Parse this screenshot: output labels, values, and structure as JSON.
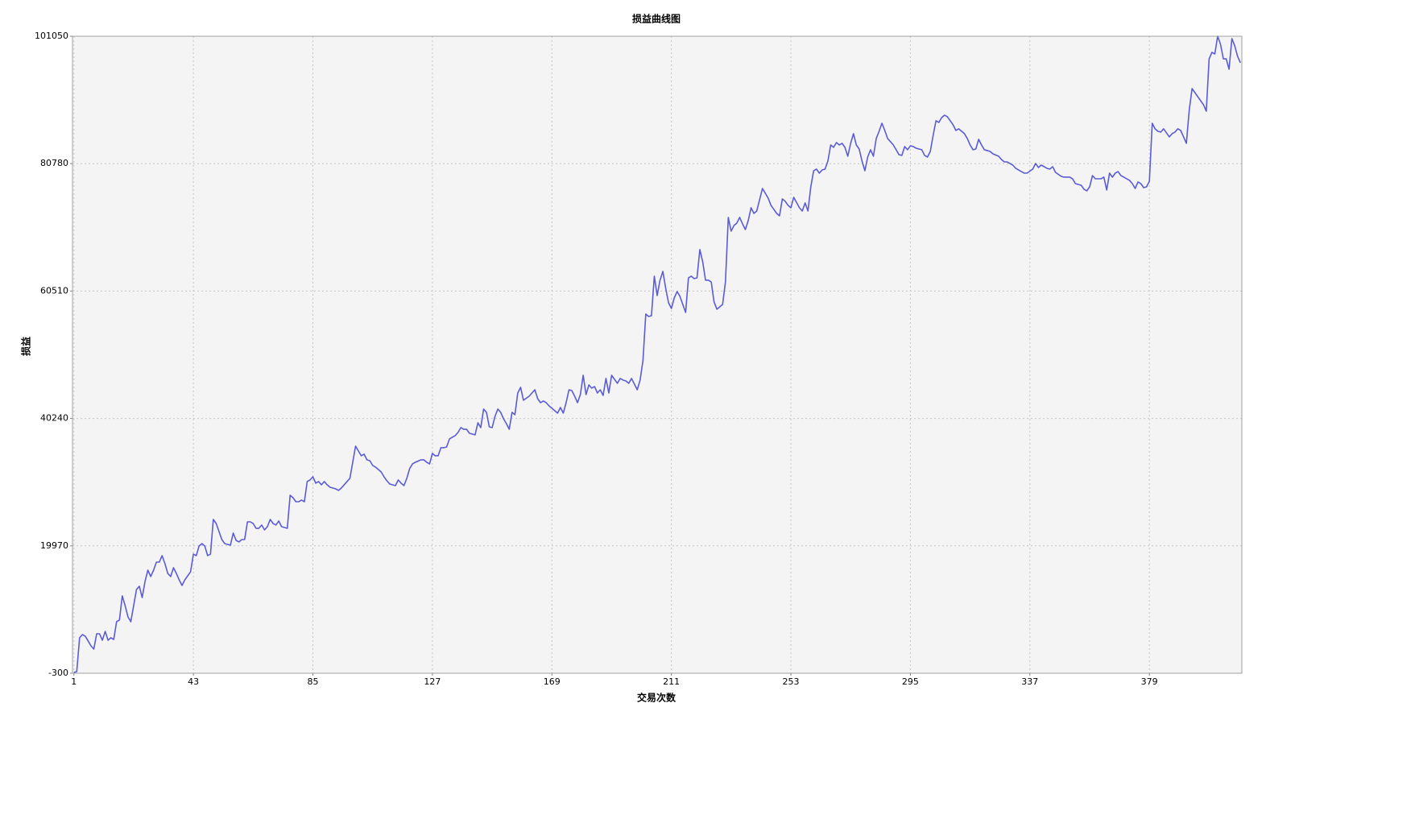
{
  "chart_data": {
    "type": "line",
    "title": "损益曲线图",
    "x_label": "交易次数",
    "y_label": "损益",
    "color": "#5b5bd6",
    "grid": true,
    "xlim": [
      0.5,
      411.5
    ],
    "xticks": [
      1,
      43,
      85,
      127,
      169,
      211,
      253,
      295,
      337,
      379
    ],
    "ylim": [
      -300,
      101050
    ],
    "yticks": [
      -300,
      19970,
      40240,
      60510,
      80780,
      101050
    ],
    "x": [
      1,
      2,
      3,
      4,
      5,
      6,
      7,
      8,
      9,
      10,
      11,
      12,
      13,
      14,
      15,
      16,
      17,
      18,
      19,
      20,
      21,
      22,
      23,
      24,
      25,
      26,
      27,
      28,
      29,
      30,
      31,
      32,
      33,
      34,
      35,
      36,
      37,
      38,
      39,
      40,
      42,
      43,
      44,
      45,
      46,
      47,
      48,
      49,
      50,
      51,
      52,
      53,
      54,
      56,
      57,
      58,
      59,
      60,
      61,
      62,
      63,
      64,
      65,
      66,
      67,
      68,
      69,
      70,
      71,
      72,
      73,
      74,
      76,
      77,
      78,
      79,
      80,
      81,
      82,
      83,
      84,
      85,
      86,
      87,
      88,
      89,
      90,
      91,
      93,
      94,
      95,
      97,
      98,
      99,
      100,
      101,
      102,
      103,
      104,
      105,
      106,
      107,
      109,
      110,
      111,
      112,
      114,
      115,
      116,
      117,
      118,
      119,
      120,
      121,
      123,
      124,
      125,
      126,
      127,
      128,
      129,
      130,
      131,
      132,
      133,
      135,
      136,
      137,
      138,
      139,
      140,
      142,
      143,
      144,
      145,
      146,
      147,
      148,
      149,
      150,
      151,
      152,
      153,
      154,
      155,
      156,
      157,
      158,
      159,
      161,
      162,
      163,
      164,
      165,
      166,
      167,
      168,
      170,
      171,
      172,
      173,
      174,
      175,
      176,
      177,
      178,
      179,
      180,
      181,
      182,
      183,
      184,
      185,
      186,
      187,
      188,
      189,
      190,
      191,
      192,
      193,
      194,
      195,
      196,
      197,
      198,
      199,
      200,
      201,
      202,
      203,
      204,
      205,
      206,
      207,
      208,
      209,
      210,
      211,
      212,
      213,
      214,
      215,
      216,
      217,
      218,
      219,
      220,
      221,
      222,
      223,
      224,
      225,
      226,
      227,
      229,
      230,
      231,
      232,
      233,
      234,
      235,
      236,
      237,
      238,
      239,
      240,
      241,
      243,
      244,
      245,
      246,
      247,
      248,
      249,
      250,
      251,
      252,
      253,
      254,
      256,
      257,
      258,
      259,
      260,
      261,
      262,
      263,
      264,
      265,
      266,
      267,
      268,
      269,
      270,
      271,
      272,
      273,
      274,
      275,
      276,
      277,
      278,
      279,
      280,
      281,
      282,
      283,
      284,
      285,
      286,
      287,
      288,
      289,
      291,
      292,
      293,
      294,
      295,
      296,
      297,
      299,
      300,
      301,
      302,
      303,
      304,
      305,
      306,
      307,
      308,
      309,
      310,
      311,
      312,
      314,
      315,
      316,
      317,
      318,
      319,
      320,
      321,
      323,
      324,
      326,
      327,
      328,
      329,
      331,
      332,
      334,
      335,
      336,
      338,
      339,
      340,
      341,
      343,
      344,
      345,
      346,
      348,
      349,
      351,
      352,
      353,
      355,
      356,
      357,
      358,
      359,
      360,
      362,
      363,
      364,
      365,
      366,
      367,
      368,
      369,
      370,
      372,
      373,
      374,
      375,
      376,
      377,
      378,
      379,
      380,
      381,
      382,
      383,
      384,
      386,
      387,
      388,
      389,
      390,
      391,
      392,
      393,
      394,
      395,
      396,
      398,
      399,
      400,
      401,
      402,
      403,
      404,
      405,
      406,
      407,
      408,
      409,
      410,
      411
    ],
    "values": [
      -170,
      -40,
      5340,
      5850,
      5590,
      4830,
      4060,
      3540,
      5980,
      5980,
      4950,
      6360,
      4950,
      5340,
      5080,
      7900,
      8160,
      12000,
      10460,
      8670,
      7900,
      10460,
      13030,
      13540,
      11740,
      14310,
      16100,
      15080,
      16100,
      17380,
      17380,
      18410,
      17130,
      15590,
      15080,
      16490,
      15590,
      14560,
      13670,
      14560,
      15840,
      18660,
      18410,
      19940,
      20330,
      19940,
      18410,
      18660,
      24170,
      23530,
      22250,
      20970,
      20330,
      20070,
      22000,
      20840,
      20590,
      20970,
      20970,
      23790,
      23790,
      23530,
      22760,
      22760,
      23280,
      22510,
      23020,
      24170,
      23530,
      23280,
      23920,
      23020,
      22760,
      28020,
      27630,
      26990,
      26990,
      27250,
      26990,
      30200,
      30450,
      30960,
      29940,
      30200,
      29680,
      30200,
      29680,
      29300,
      29040,
      28790,
      29170,
      30200,
      30710,
      33270,
      35830,
      35060,
      34300,
      34550,
      33650,
      33530,
      32760,
      32500,
      31730,
      30960,
      30320,
      29810,
      29550,
      30450,
      29940,
      29550,
      30710,
      32250,
      33010,
      33270,
      33650,
      33650,
      33270,
      33010,
      34680,
      34300,
      34300,
      35580,
      35580,
      35700,
      36990,
      37500,
      38010,
      38780,
      38520,
      38520,
      37880,
      37630,
      39550,
      38780,
      41730,
      41210,
      38910,
      38780,
      40570,
      41730,
      41210,
      40190,
      39420,
      38520,
      41210,
      40830,
      44290,
      45190,
      43140,
      43780,
      44290,
      44800,
      43390,
      42750,
      43010,
      42750,
      42240,
      41470,
      41090,
      41980,
      41090,
      42750,
      44800,
      44670,
      43780,
      42750,
      44030,
      47110,
      44030,
      45570,
      45060,
      45310,
      44290,
      44800,
      43900,
      46600,
      44290,
      47110,
      46470,
      45830,
      46600,
      46340,
      46210,
      45830,
      46600,
      45700,
      44800,
      46340,
      49410,
      56850,
      56460,
      56590,
      62870,
      59790,
      62230,
      63640,
      60950,
      58640,
      57740,
      59410,
      60430,
      59670,
      58380,
      57100,
      62610,
      62870,
      62480,
      62610,
      67100,
      65170,
      62230,
      62230,
      61970,
      58770,
      57620,
      58380,
      61970,
      72220,
      70040,
      70940,
      71320,
      72220,
      71200,
      70300,
      71710,
      73760,
      72860,
      73250,
      76830,
      76070,
      75300,
      74150,
      73510,
      72860,
      72480,
      75170,
      74790,
      74150,
      73760,
      75420,
      73760,
      73250,
      74530,
      73250,
      77090,
      79650,
      79910,
      79270,
      79780,
      79910,
      81190,
      83750,
      83370,
      84140,
      83750,
      84010,
      83370,
      81960,
      84010,
      85550,
      83750,
      83110,
      81190,
      79650,
      81830,
      82990,
      81960,
      84780,
      85930,
      87210,
      86060,
      84780,
      84270,
      83750,
      82210,
      82090,
      83500,
      82990,
      83620,
      83500,
      83240,
      82990,
      82090,
      81830,
      82730,
      85290,
      87600,
      87340,
      88110,
      88490,
      88240,
      87600,
      86960,
      86060,
      86320,
      85550,
      84780,
      83750,
      82990,
      83110,
      84650,
      83750,
      82990,
      82730,
      82340,
      81960,
      81450,
      81060,
      81060,
      80550,
      80040,
      79520,
      79270,
      79270,
      79910,
      80810,
      80170,
      80550,
      80040,
      79910,
      80300,
      79400,
      78760,
      78630,
      78630,
      78370,
      77600,
      77350,
      76710,
      76450,
      77090,
      78880,
      78370,
      78370,
      78630,
      76580,
      79270,
      78630,
      79270,
      79520,
      78880,
      78630,
      78120,
      77600,
      76830,
      77860,
      77600,
      76960,
      77090,
      77990,
      87210,
      86320,
      85930,
      85800,
      86320,
      85040,
      85550,
      85800,
      86320,
      86060,
      85040,
      84010,
      89260,
      92720,
      92080,
      91440,
      90160,
      89130,
      97460,
      98490,
      98230,
      101050,
      99770,
      97460,
      97460,
      95800,
      100670,
      99520,
      97850,
      96830
    ]
  }
}
